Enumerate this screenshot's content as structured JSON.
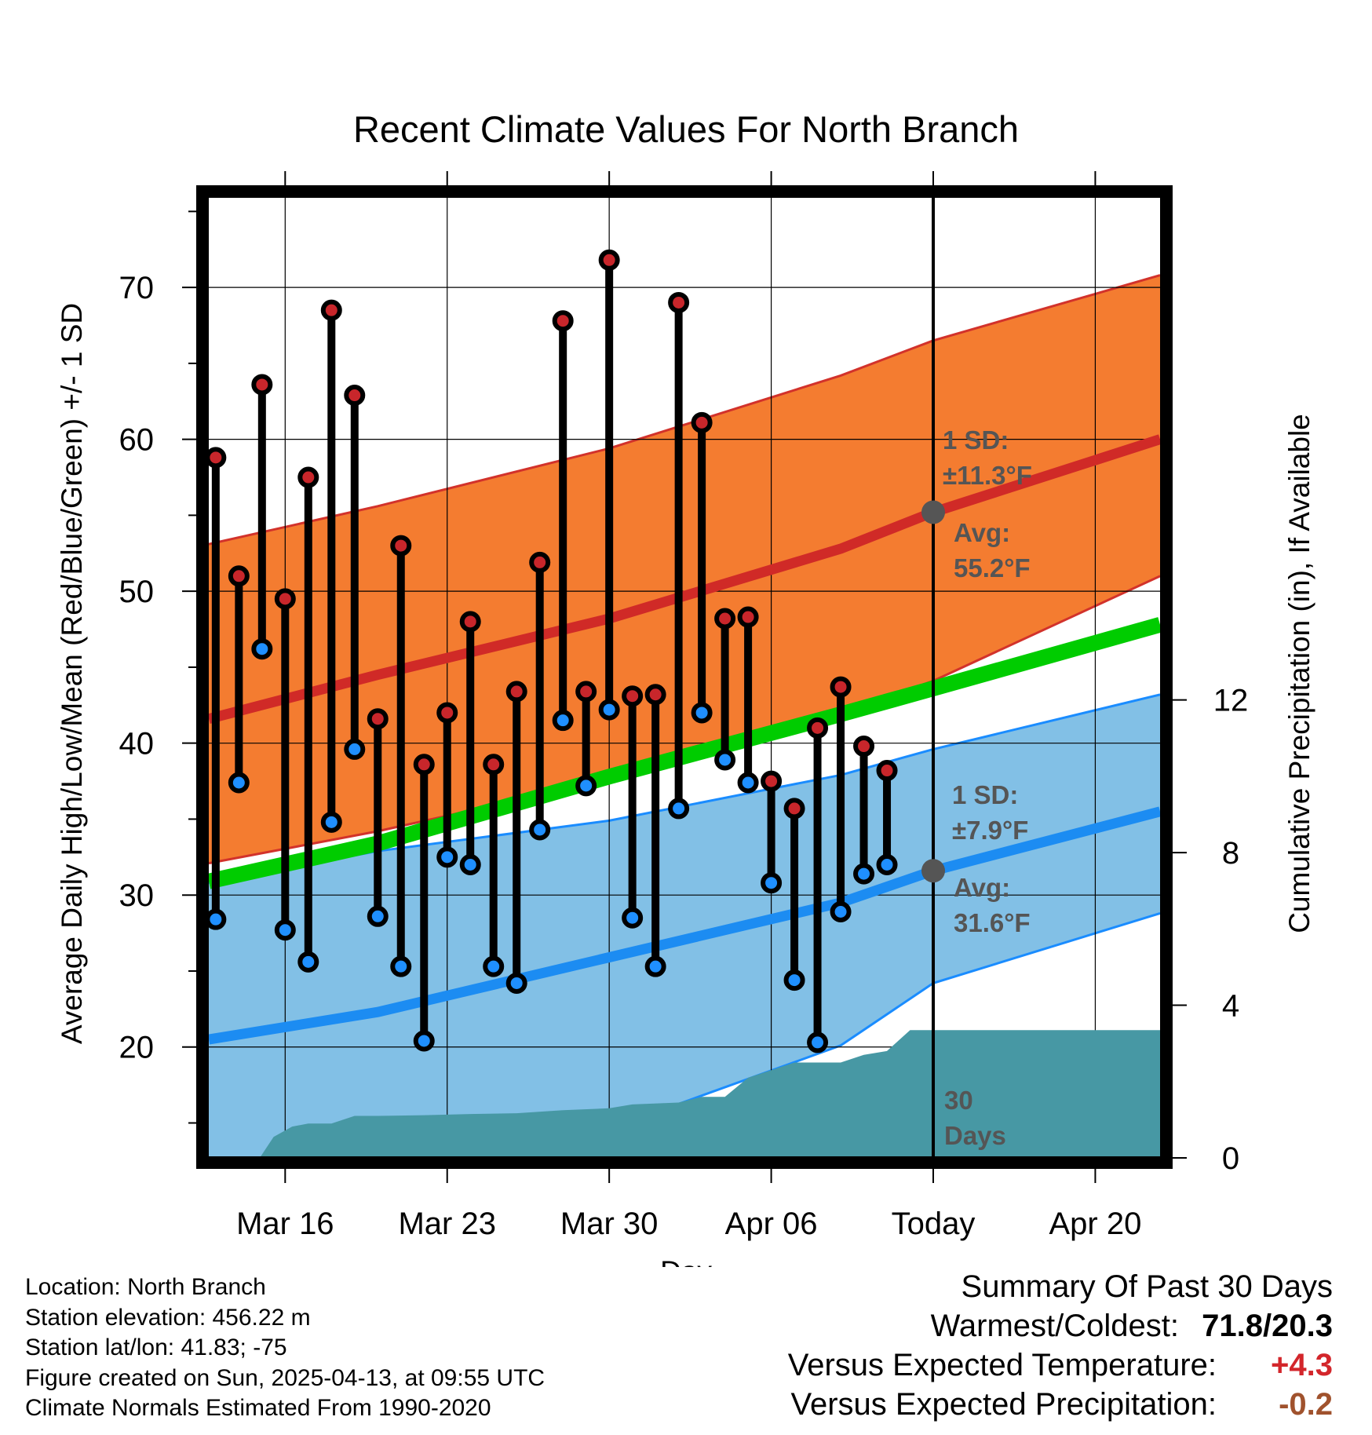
{
  "colors": {
    "high_band": "#f47c30",
    "high_band_edge": "#d2322b",
    "high_mean": "#d02a27",
    "low_band": "#82c0e6",
    "low_band_edge": "#1a8cff",
    "low_mean": "#1c8cf2",
    "mean_line": "#00cc00",
    "high_dot": "#c8262b",
    "low_dot": "#1f8fff",
    "precip": "#4798a4",
    "anno_text": "#555555",
    "warm_value": "#d3262b",
    "precip_value": "#a0522d"
  },
  "chart_data": {
    "type": "line",
    "title": "Recent Climate Values For North Branch",
    "xlabel": "Day",
    "ylabel": "Average Daily High/Low/Mean (Red/Blue/Green) +/- 1 SD",
    "ylabel_right": "Cumulative Precipitation (in), If Available",
    "x_ticks": [
      {
        "day": 16,
        "label": "Mar 16"
      },
      {
        "day": 23,
        "label": "Mar 23"
      },
      {
        "day": 30,
        "label": "Mar 30"
      },
      {
        "day": 37,
        "label": "Apr 06"
      },
      {
        "day": 44,
        "label": "Today"
      },
      {
        "day": 51,
        "label": "Apr 20"
      }
    ],
    "x_range": [
      12.7,
      53.8
    ],
    "y_range": [
      12.7,
      76
    ],
    "y_ticks": [
      20,
      30,
      40,
      50,
      60,
      70
    ],
    "y_minor_ticks": [
      15,
      25,
      35,
      45,
      55,
      65,
      75
    ],
    "y2_range": [
      0,
      25.2
    ],
    "y2_ticks": [
      0,
      4,
      8,
      12
    ],
    "today": 44,
    "daily": {
      "day": [
        13,
        14,
        15,
        16,
        17,
        18,
        19,
        20,
        21,
        22,
        23,
        24,
        25,
        26,
        27,
        28,
        29,
        30,
        31,
        32,
        33,
        34,
        35,
        36,
        37,
        38,
        39,
        40,
        41,
        42,
        43
      ],
      "high": [
        58.8,
        51.0,
        63.6,
        49.5,
        57.5,
        68.5,
        62.9,
        41.6,
        53.0,
        38.6,
        42.0,
        48.0,
        38.6,
        43.4,
        51.9,
        67.8,
        43.4,
        71.8,
        43.1,
        43.2,
        69.0,
        61.1,
        48.2,
        48.3,
        37.5,
        35.7,
        41.0,
        43.7,
        39.8,
        38.2,
        null
      ],
      "low": [
        28.4,
        37.4,
        46.2,
        27.7,
        25.6,
        34.8,
        39.6,
        28.6,
        25.3,
        20.4,
        32.5,
        32.0,
        25.3,
        24.2,
        34.3,
        41.5,
        37.2,
        42.2,
        28.5,
        25.3,
        35.7,
        42.0,
        38.9,
        37.4,
        30.8,
        24.4,
        20.3,
        28.9,
        31.4,
        32.0,
        null
      ]
    },
    "normals": {
      "day": [
        12.7,
        20,
        30,
        40,
        44,
        53.8
      ],
      "high_mean": [
        41.6,
        44.5,
        48.2,
        52.8,
        55.2,
        60.0
      ],
      "low_mean": [
        20.5,
        22.3,
        25.9,
        29.5,
        31.6,
        35.5
      ],
      "mean": [
        30.9,
        33.4,
        37.8,
        41.9,
        43.6,
        47.8
      ],
      "high_upper": [
        53.1,
        55.6,
        59.4,
        64.2,
        66.5,
        70.8
      ],
      "high_lower": [
        32.1,
        34.2,
        37.6,
        41.9,
        44.1,
        51.0
      ],
      "low_upper": [
        30.8,
        32.9,
        34.9,
        37.9,
        39.6,
        43.2
      ],
      "low_lower": [
        7.6,
        10.5,
        14.6,
        20.1,
        24.2,
        28.8
      ]
    },
    "precip": {
      "day": [
        13,
        14,
        14.9,
        15.5,
        16.3,
        17,
        18,
        19,
        20,
        22,
        24,
        26,
        28,
        30,
        31,
        33,
        34,
        35,
        36,
        37,
        38,
        39,
        40,
        41,
        42,
        43,
        53.8
      ],
      "cumulative": [
        0,
        0,
        0,
        0.55,
        0.82,
        0.9,
        0.9,
        1.1,
        1.1,
        1.12,
        1.15,
        1.17,
        1.25,
        1.3,
        1.4,
        1.45,
        1.6,
        1.6,
        2.1,
        2.3,
        2.5,
        2.5,
        2.5,
        2.7,
        2.8,
        3.35,
        3.35
      ]
    },
    "annotations": {
      "high_sd_label": "1 SD:",
      "high_sd_value": "±11.3°F",
      "high_avg_label": "Avg:",
      "high_avg_value": "55.2°F",
      "low_sd_label": "1 SD:",
      "low_sd_value": "±7.9°F",
      "low_avg_label": "Avg:",
      "low_avg_value": "31.6°F",
      "window_count": "30",
      "window_unit": "Days"
    }
  },
  "footer": {
    "location": "Location: North Branch",
    "elevation": "Station elevation: 456.22 m",
    "latlon": "Station lat/lon: 41.83; -75",
    "created": "Figure created on Sun, 2025-04-13, at 09:55 UTC",
    "normals": "Climate Normals Estimated From 1990-2020"
  },
  "summary": {
    "heading": "Summary Of Past 30 Days",
    "warm_cold_label": "Warmest/Coldest:",
    "warm_cold_value": "71.8/20.3",
    "temp_label": "Versus Expected Temperature:",
    "temp_value": "+4.3",
    "precip_label": "Versus Expected Precipitation:",
    "precip_value": "-0.2"
  }
}
